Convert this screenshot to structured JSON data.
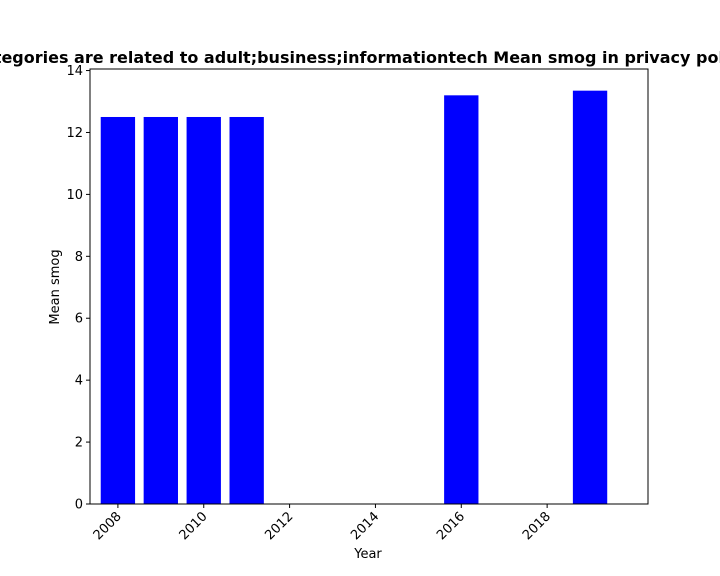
{
  "chart_data": {
    "type": "bar",
    "title": "Categories are related to adult;business;informationtech Mean smog in privacy policies",
    "xlabel": "Year",
    "ylabel": "Mean smog",
    "x": [
      2008,
      2009,
      2010,
      2011,
      2016,
      2019
    ],
    "values": [
      12.5,
      12.5,
      12.5,
      12.5,
      13.2,
      13.35
    ],
    "xlim": [
      2007.35,
      2020.35
    ],
    "ylim": [
      0,
      14.05
    ],
    "xticks": [
      2008,
      2010,
      2012,
      2014,
      2016,
      2018
    ],
    "xtick_labels": [
      "2008",
      "2010",
      "2012",
      "2014",
      "2016",
      "2018"
    ],
    "yticks": [
      0,
      2,
      4,
      6,
      8,
      10,
      12,
      14
    ],
    "ytick_labels": [
      "0",
      "2",
      "4",
      "6",
      "8",
      "10",
      "12",
      "14"
    ],
    "grid": false,
    "legend": "none",
    "bar_color": "#0000ff"
  }
}
